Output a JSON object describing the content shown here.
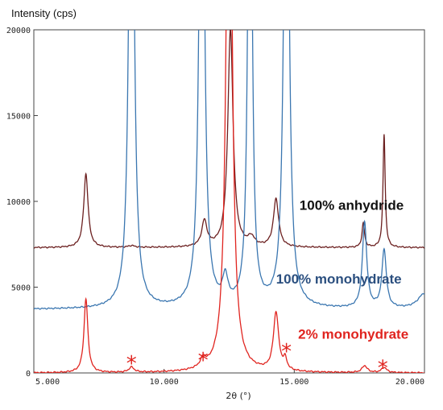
{
  "chart_data": {
    "type": "line",
    "ylabel": "Intensity (cps)",
    "xlabel": "2θ (°)",
    "xlim": [
      5,
      20
    ],
    "ylim": [
      0,
      20000
    ],
    "x_ticks": [
      "5.000",
      "10.000",
      "15.000",
      "20.000"
    ],
    "y_ticks": [
      "0",
      "5000",
      "10000",
      "15000",
      "20000"
    ],
    "grid": false,
    "series": [
      {
        "name": "100% anhydride",
        "color": "#6b1f1f",
        "baseline": 7300,
        "peaks": [
          {
            "x": 7.0,
            "height": 4300,
            "width": 0.1
          },
          {
            "x": 8.75,
            "height": 100,
            "width": 0.15
          },
          {
            "x": 11.55,
            "height": 1500,
            "width": 0.12
          },
          {
            "x": 12.55,
            "height": 12700,
            "width": 0.12
          },
          {
            "x": 13.35,
            "height": 500,
            "width": 0.15
          },
          {
            "x": 14.3,
            "height": 2800,
            "width": 0.12
          },
          {
            "x": 17.65,
            "height": 1400,
            "width": 0.06
          },
          {
            "x": 18.45,
            "height": 6600,
            "width": 0.05
          }
        ]
      },
      {
        "name": "100% monohydrate",
        "color": "#3a76b0",
        "baseline": 3700,
        "peaks": [
          {
            "x": 8.75,
            "height": 40000,
            "width": 0.1
          },
          {
            "x": 11.45,
            "height": 40000,
            "width": 0.1
          },
          {
            "x": 12.35,
            "height": 1500,
            "width": 0.12
          },
          {
            "x": 13.3,
            "height": 40000,
            "width": 0.08
          },
          {
            "x": 14.7,
            "height": 40000,
            "width": 0.1
          },
          {
            "x": 17.7,
            "height": 5000,
            "width": 0.1
          },
          {
            "x": 18.45,
            "height": 3400,
            "width": 0.1
          },
          {
            "x": 20.0,
            "height": 900,
            "width": 0.3
          }
        ]
      },
      {
        "name": "2% monohydrate",
        "color": "#e0241f",
        "baseline": 0,
        "peaks": [
          {
            "x": 7.0,
            "height": 4300,
            "width": 0.09
          },
          {
            "x": 8.75,
            "height": 300,
            "width": 0.12
          },
          {
            "x": 11.5,
            "height": 500,
            "width": 0.12
          },
          {
            "x": 12.5,
            "height": 40000,
            "width": 0.12
          },
          {
            "x": 14.3,
            "height": 3400,
            "width": 0.12
          },
          {
            "x": 14.65,
            "height": 600,
            "width": 0.08
          },
          {
            "x": 17.7,
            "height": 400,
            "width": 0.12
          },
          {
            "x": 18.45,
            "height": 300,
            "width": 0.12
          }
        ]
      }
    ],
    "annotations": [
      {
        "text": "*",
        "x": 8.75,
        "y": 700,
        "color": "#e0241f"
      },
      {
        "text": "*",
        "x": 11.5,
        "y": 900,
        "color": "#e0241f"
      },
      {
        "text": "*",
        "x": 14.7,
        "y": 1400,
        "color": "#e0241f"
      },
      {
        "text": "*",
        "x": 18.4,
        "y": 450,
        "color": "#e0241f"
      }
    ],
    "labels": [
      {
        "text": "100% anhydride",
        "x": 15.2,
        "y": 9500,
        "color": "#111111"
      },
      {
        "text": "100% monohydrate",
        "x": 14.3,
        "y": 5200,
        "color": "#2b4f7f"
      },
      {
        "text": "2% monohydrate",
        "x": 15.15,
        "y": 2000,
        "color": "#e0241f"
      }
    ]
  }
}
